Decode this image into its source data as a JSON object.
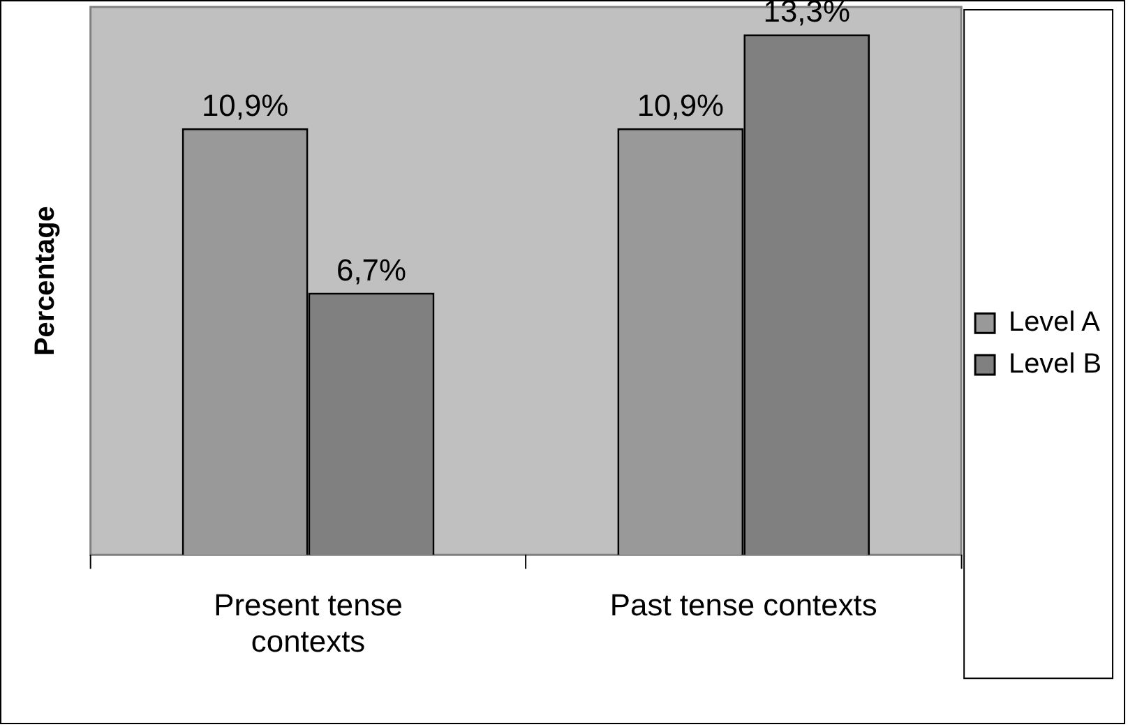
{
  "chart_data": {
    "type": "bar",
    "ylabel": "Percentage",
    "categories": [
      "Present tense contexts",
      "Past tense contexts"
    ],
    "series": [
      {
        "name": "Level A",
        "color": "#999999",
        "values": [
          10.9,
          10.9
        ],
        "value_labels": [
          "10,9%",
          "10,9%"
        ]
      },
      {
        "name": "Level B",
        "color": "#808080",
        "values": [
          6.7,
          13.3
        ],
        "value_labels": [
          "6,7%",
          "13,3%"
        ]
      }
    ],
    "legend": "right",
    "grid": false
  }
}
